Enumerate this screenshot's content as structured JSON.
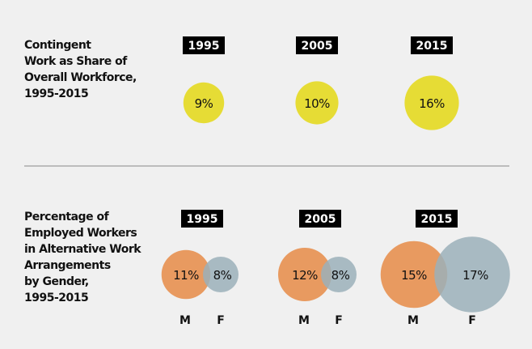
{
  "chart_data": [
    {
      "type": "bubble",
      "title": "Contingent\nWork as Share of\nOverall Workforce,\n1995-2015",
      "categories": [
        "1995",
        "2005",
        "2015"
      ],
      "values": [
        9,
        10,
        16
      ],
      "unit": "%",
      "color": "#e6dc35"
    },
    {
      "type": "bubble",
      "title": "Percentage of\nEmployed Workers\nin Alternative Work\nArrangements\nby Gender,\n1995-2015",
      "categories": [
        "1995",
        "2005",
        "2015"
      ],
      "series": [
        {
          "name": "M",
          "values": [
            11,
            12,
            15
          ],
          "color": "#e89a60"
        },
        {
          "name": "F",
          "values": [
            8,
            8,
            17
          ],
          "color": "#9bb0ba"
        }
      ],
      "unit": "%"
    }
  ]
}
